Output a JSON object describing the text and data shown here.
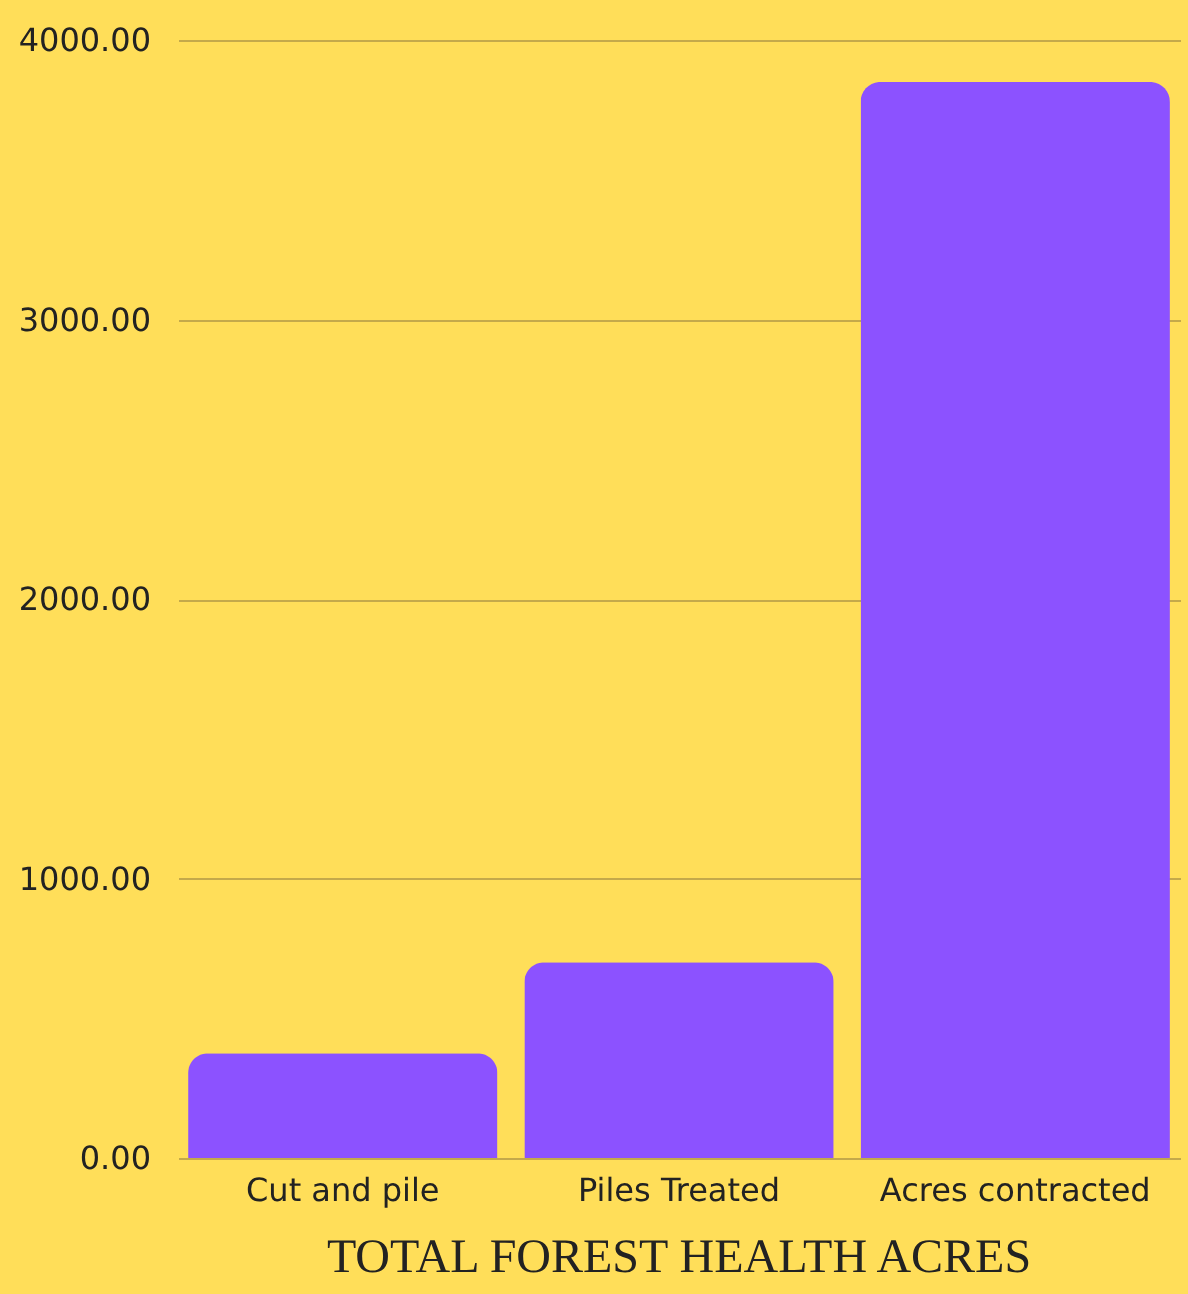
{
  "chart_data": {
    "type": "bar",
    "title": "TOTAL FOREST HEALTH ACRES",
    "categories": [
      "Cut and pile",
      "Piles Treated",
      "Acres contracted"
    ],
    "values": [
      375,
      700,
      3850
    ],
    "color": "#8c52ff",
    "ylim": [
      0,
      4000
    ],
    "yticks": [
      {
        "value": 0,
        "label": "0.00"
      },
      {
        "value": 1000,
        "label": "1000.00"
      },
      {
        "value": 2000,
        "label": "2000.00"
      },
      {
        "value": 3000,
        "label": "3000.00"
      },
      {
        "value": 4000,
        "label": "4000.00"
      }
    ],
    "grid": "y"
  }
}
